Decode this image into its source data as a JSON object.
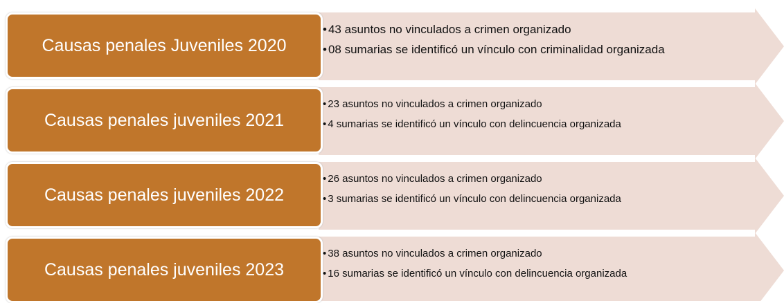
{
  "rows": [
    {
      "label": "Causas penales Juveniles 2020",
      "bullets": [
        "43 asuntos no vinculados a crimen organizado",
        "08 sumarias se identificó un vínculo con criminalidad organizada"
      ]
    },
    {
      "label": "Causas penales juveniles 2021",
      "bullets": [
        "23 asuntos no vinculados a crimen organizado",
        "4 sumarias se identificó un vínculo con delincuencia organizada"
      ]
    },
    {
      "label": "Causas penales juveniles 2022",
      "bullets": [
        "26 asuntos no vinculados a crimen organizado",
        "3 sumarias se identificó un vínculo con delincuencia organizada"
      ]
    },
    {
      "label": "Causas penales juveniles 2023",
      "bullets": [
        "38 asuntos no vinculados a crimen organizado",
        "16 sumarias se identificó un vínculo con delincuencia organizada"
      ]
    }
  ]
}
